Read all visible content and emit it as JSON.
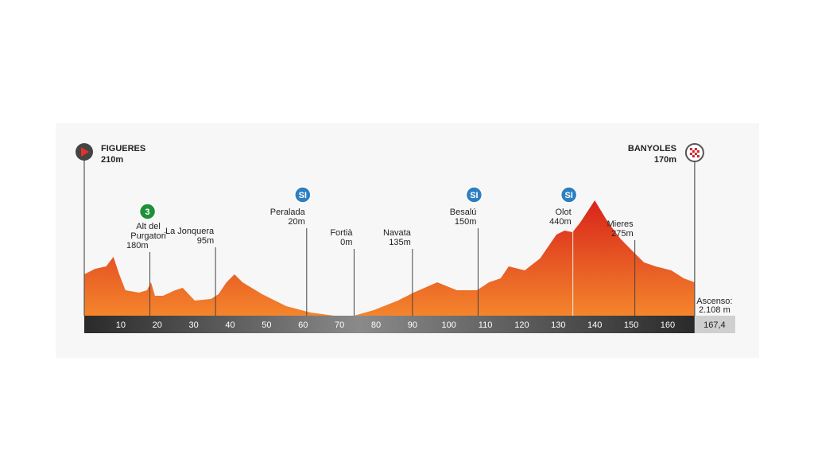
{
  "start": {
    "name": "FIGUERES",
    "elevation": "210m"
  },
  "finish": {
    "name": "BANYOLES",
    "elevation": "170m"
  },
  "waypoints": [
    {
      "lines": [
        "Alt del",
        "Purgatori"
      ],
      "elevation": "180m",
      "km": 18,
      "badge": "3"
    },
    {
      "lines": [
        "La Jonquera"
      ],
      "elevation": "95m",
      "km": 36
    },
    {
      "lines": [
        "Peralada"
      ],
      "elevation": "20m",
      "km": 61,
      "badge": "SI"
    },
    {
      "lines": [
        "Fortià"
      ],
      "elevation": "0m",
      "km": 74
    },
    {
      "lines": [
        "Navata"
      ],
      "elevation": "135m",
      "km": 90
    },
    {
      "lines": [
        "Besalú"
      ],
      "elevation": "150m",
      "km": 108,
      "badge": "SI"
    },
    {
      "lines": [
        "Olot"
      ],
      "elevation": "440m",
      "km": 134,
      "badge": "SI"
    },
    {
      "lines": [
        "Mieres"
      ],
      "elevation": "275m",
      "km": 151
    }
  ],
  "axis": {
    "ticks": [
      10,
      20,
      30,
      40,
      50,
      60,
      70,
      80,
      90,
      100,
      110,
      120,
      130,
      140,
      150,
      160
    ]
  },
  "distance": "167,4",
  "ascent": {
    "label": "Ascenso:",
    "value": "2.108 m"
  },
  "profile": {
    "km": [
      0,
      3,
      6,
      8,
      9.6,
      11.3,
      15,
      17.2,
      18.3,
      19.4,
      21.6,
      24.9,
      27,
      30.3,
      34.7,
      36.8,
      39,
      41.2,
      43.4,
      48.8,
      55.4,
      62,
      68.5,
      74,
      79.4,
      86,
      90.3,
      96.8,
      102.2,
      107.7,
      111,
      114.2,
      116.4,
      120.8,
      125,
      129.5,
      131.7,
      133.9,
      136,
      140,
      143.7,
      147,
      150.2,
      153.5,
      156.7,
      161,
      164.4,
      167.4
    ],
    "elevation": [
      208,
      236,
      248,
      296,
      208,
      128,
      116,
      128,
      168,
      100,
      100,
      128,
      140,
      76,
      84,
      108,
      168,
      208,
      168,
      108,
      48,
      16,
      0,
      0,
      28,
      76,
      116,
      168,
      128,
      128,
      168,
      188,
      248,
      228,
      288,
      408,
      428,
      420,
      468,
      580,
      468,
      388,
      328,
      268,
      248,
      228,
      188,
      168
    ]
  }
}
